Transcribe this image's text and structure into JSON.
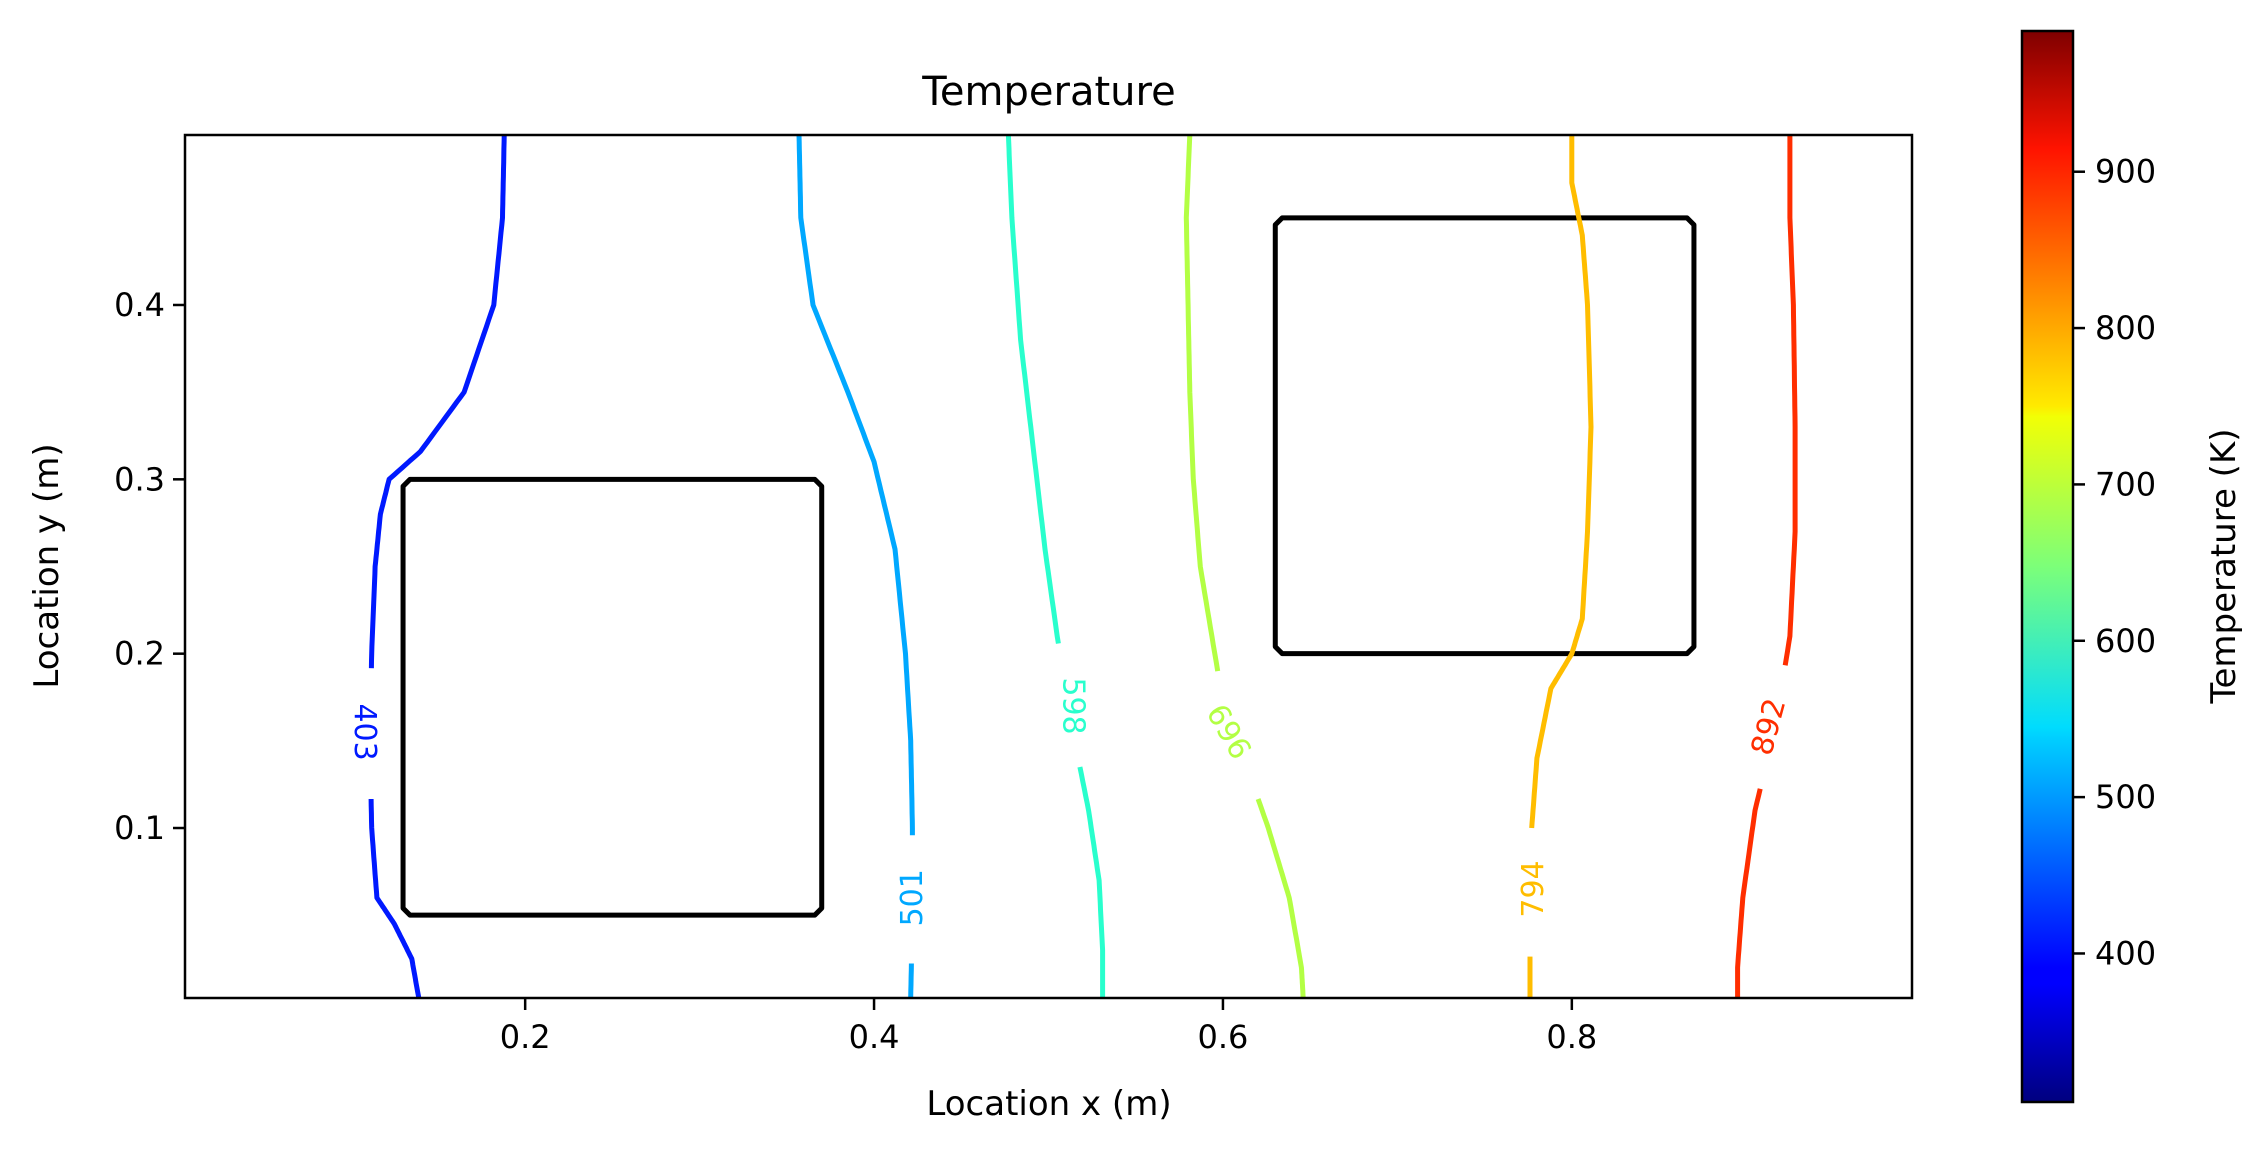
{
  "chart_data": {
    "type": "contour",
    "title": "Temperature",
    "xlabel": "Location x (m)",
    "ylabel": "Location y (m)",
    "xlim": [
      0.005,
      0.995
    ],
    "ylim": [
      0.0025,
      0.4975
    ],
    "x_ticks": [
      0.2,
      0.4,
      0.6,
      0.8
    ],
    "y_ticks": [
      0.1,
      0.2,
      0.3,
      0.4
    ],
    "x_tick_labels": [
      "0.2",
      "0.4",
      "0.6",
      "0.8"
    ],
    "y_tick_labels": [
      "0.1",
      "0.2",
      "0.3",
      "0.4"
    ],
    "grid": false,
    "colormap": "jet",
    "colorbar": {
      "label": "Temperature (K)",
      "range": [
        305,
        990
      ],
      "ticks": [
        400,
        500,
        600,
        700,
        800,
        900
      ],
      "tick_labels": [
        "400",
        "500",
        "600",
        "700",
        "800",
        "900"
      ]
    },
    "obstacles": [
      {
        "x0": 0.13,
        "x1": 0.37,
        "y0": 0.05,
        "y1": 0.3
      },
      {
        "x0": 0.63,
        "x1": 0.87,
        "y0": 0.2,
        "y1": 0.45
      }
    ],
    "contours": [
      {
        "level": 403,
        "label": "403",
        "color": "#0019ff",
        "label_at": [
          0.108,
          0.155
        ],
        "label_rotation": 90,
        "points": [
          [
            0.188,
            0.4975
          ],
          [
            0.187,
            0.45
          ],
          [
            0.182,
            0.4
          ],
          [
            0.165,
            0.35
          ],
          [
            0.14,
            0.316
          ],
          [
            0.122,
            0.3
          ],
          [
            0.117,
            0.28
          ],
          [
            0.114,
            0.25
          ],
          [
            0.112,
            0.2
          ],
          [
            0.111,
            0.15
          ],
          [
            0.112,
            0.1
          ],
          [
            0.115,
            0.06
          ],
          [
            0.125,
            0.045
          ],
          [
            0.135,
            0.025
          ],
          [
            0.139,
            0.0025
          ]
        ]
      },
      {
        "level": 501,
        "label": "501",
        "color": "#00a8ff",
        "label_at": [
          0.422,
          0.06
        ],
        "label_rotation": -90,
        "points": [
          [
            0.357,
            0.4975
          ],
          [
            0.358,
            0.45
          ],
          [
            0.365,
            0.4
          ],
          [
            0.385,
            0.35
          ],
          [
            0.4,
            0.31
          ],
          [
            0.412,
            0.26
          ],
          [
            0.418,
            0.2
          ],
          [
            0.421,
            0.15
          ],
          [
            0.422,
            0.1
          ],
          [
            0.422,
            0.05
          ],
          [
            0.421,
            0.0025
          ]
        ]
      },
      {
        "level": 598,
        "label": "598",
        "color": "#29ffcd",
        "label_at": [
          0.514,
          0.17
        ],
        "label_rotation": 90,
        "points": [
          [
            0.477,
            0.4975
          ],
          [
            0.479,
            0.45
          ],
          [
            0.484,
            0.38
          ],
          [
            0.491,
            0.32
          ],
          [
            0.498,
            0.26
          ],
          [
            0.505,
            0.21
          ],
          [
            0.513,
            0.16
          ],
          [
            0.523,
            0.11
          ],
          [
            0.529,
            0.07
          ],
          [
            0.531,
            0.03
          ],
          [
            0.531,
            0.0025
          ]
        ]
      },
      {
        "level": 696,
        "label": "696",
        "color": "#b3ff44",
        "label_at": [
          0.603,
          0.155
        ],
        "label_rotation": 60,
        "points": [
          [
            0.581,
            0.4975
          ],
          [
            0.579,
            0.45
          ],
          [
            0.58,
            0.4
          ],
          [
            0.581,
            0.35
          ],
          [
            0.583,
            0.3
          ],
          [
            0.587,
            0.25
          ],
          [
            0.597,
            0.19
          ],
          [
            0.612,
            0.14
          ],
          [
            0.626,
            0.1
          ],
          [
            0.638,
            0.06
          ],
          [
            0.645,
            0.02
          ],
          [
            0.646,
            0.0025
          ]
        ]
      },
      {
        "level": 794,
        "label": "794",
        "color": "#ffbd00",
        "label_at": [
          0.778,
          0.065
        ],
        "label_rotation": -90,
        "points": [
          [
            0.8,
            0.4975
          ],
          [
            0.8,
            0.47
          ],
          [
            0.806,
            0.44
          ],
          [
            0.809,
            0.4
          ],
          [
            0.811,
            0.33
          ],
          [
            0.809,
            0.27
          ],
          [
            0.806,
            0.22
          ],
          [
            0.8,
            0.2
          ],
          [
            0.788,
            0.18
          ],
          [
            0.78,
            0.14
          ],
          [
            0.777,
            0.1
          ],
          [
            0.776,
            0.05
          ],
          [
            0.776,
            0.0025
          ]
        ]
      },
      {
        "level": 892,
        "label": "892",
        "color": "#ff2e00",
        "label_at": [
          0.913,
          0.158
        ],
        "label_rotation": -75,
        "points": [
          [
            0.925,
            0.4975
          ],
          [
            0.925,
            0.45
          ],
          [
            0.927,
            0.4
          ],
          [
            0.928,
            0.33
          ],
          [
            0.928,
            0.27
          ],
          [
            0.925,
            0.21
          ],
          [
            0.917,
            0.16
          ],
          [
            0.905,
            0.11
          ],
          [
            0.898,
            0.06
          ],
          [
            0.895,
            0.02
          ],
          [
            0.895,
            0.0025
          ]
        ]
      }
    ]
  }
}
